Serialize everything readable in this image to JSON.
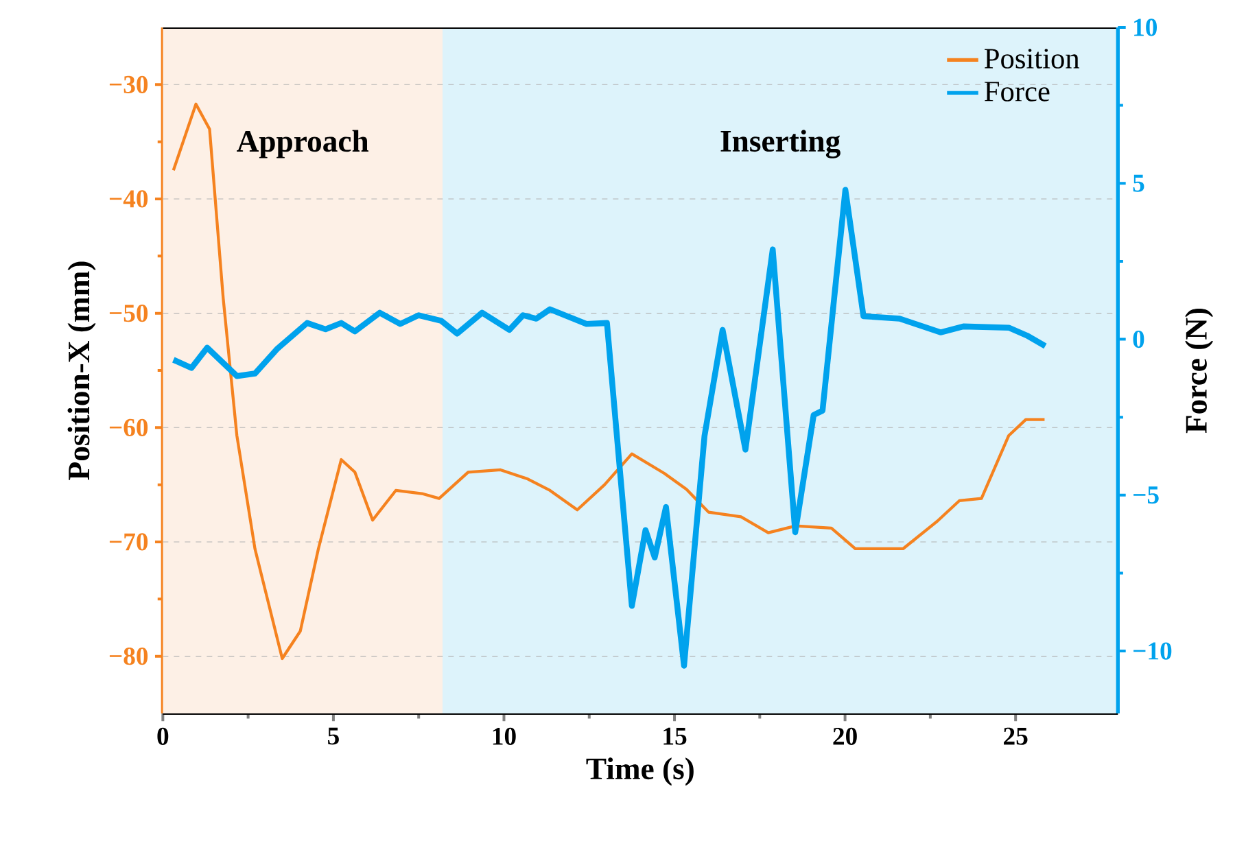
{
  "chart_data": {
    "type": "line",
    "xlabel": "Time (s)",
    "ylabel": "Position-X (mm)",
    "y2label": "Force (N)",
    "xlim": [
      0,
      28
    ],
    "xticks": [
      0,
      5,
      10,
      15,
      20,
      25
    ],
    "ylim": [
      -85,
      -25
    ],
    "yticks": [
      {
        "value": -30,
        "label": "−30"
      },
      {
        "value": -40,
        "label": "−40"
      },
      {
        "value": -50,
        "label": "−50"
      },
      {
        "value": -60,
        "label": "−60"
      },
      {
        "value": -70,
        "label": "−70"
      },
      {
        "value": -80,
        "label": "−80"
      }
    ],
    "y2lim": [
      -12,
      10
    ],
    "y2ticks": [
      10,
      5,
      0,
      {
        "value": -5,
        "label": "−5"
      },
      {
        "value": -10,
        "label": "−10"
      }
    ],
    "grid": "y",
    "legend": "top right",
    "line_style": "solid",
    "bands": [
      {
        "axis": "x",
        "from": 0,
        "to": 8.2,
        "label": "Approach",
        "color": "#fdf0e6"
      },
      {
        "axis": "x",
        "from": 8.2,
        "to": 28,
        "label": "Inserting",
        "color": "#ddf3fb"
      }
    ],
    "series": [
      {
        "name": "Position",
        "color": "#f5821f",
        "x": [
          0.31,
          0.97,
          1.37,
          1.77,
          2.17,
          2.7,
          3.5,
          4.03,
          4.56,
          5.23,
          5.63,
          6.15,
          6.83,
          7.63,
          8.1,
          8.95,
          9.9,
          10.7,
          11.35,
          12.15,
          12.95,
          13.75,
          14.7,
          15.35,
          16.0,
          16.95,
          17.75,
          18.55,
          19.6,
          20.3,
          21.7,
          22.7,
          23.35,
          24.0,
          24.8,
          25.3,
          25.85
        ],
        "values": [
          -37.5,
          -31.7,
          -33.9,
          -48.7,
          -60.7,
          -70.6,
          -80.2,
          -77.8,
          -70.6,
          -62.8,
          -63.9,
          -68.1,
          -65.5,
          -65.8,
          -66.2,
          -63.9,
          -63.7,
          -64.5,
          -65.5,
          -67.2,
          -65.0,
          -62.3,
          -64.0,
          -65.4,
          -67.4,
          -67.8,
          -69.2,
          -68.6,
          -68.8,
          -70.6,
          -70.6,
          -68.2,
          -66.4,
          -66.2,
          -60.7,
          -59.3,
          -59.3
        ]
      },
      {
        "name": "Force",
        "color": "#00a2ed",
        "axis": "y2",
        "x": [
          0.31,
          0.84,
          1.3,
          2.17,
          2.7,
          3.36,
          4.23,
          4.77,
          5.23,
          5.63,
          6.36,
          6.96,
          7.5,
          8.16,
          8.63,
          9.36,
          10.16,
          10.56,
          10.95,
          11.35,
          12.42,
          13.02,
          13.75,
          14.15,
          14.42,
          14.75,
          15.28,
          15.88,
          16.41,
          17.08,
          17.88,
          18.54,
          19.08,
          19.34,
          20.01,
          20.54,
          21.6,
          22.8,
          23.47,
          24.8,
          25.33,
          25.87
        ],
        "values": [
          -0.66,
          -0.92,
          -0.27,
          -1.18,
          -1.1,
          -0.3,
          0.52,
          0.32,
          0.52,
          0.25,
          0.85,
          0.49,
          0.77,
          0.59,
          0.18,
          0.85,
          0.3,
          0.77,
          0.66,
          0.96,
          0.49,
          0.52,
          -8.55,
          -6.12,
          -7.0,
          -5.38,
          -10.47,
          -3.1,
          0.3,
          -3.54,
          2.88,
          -6.19,
          -2.43,
          -2.29,
          4.79,
          0.74,
          0.66,
          0.22,
          0.41,
          0.37,
          0.12,
          -0.22
        ]
      }
    ]
  }
}
